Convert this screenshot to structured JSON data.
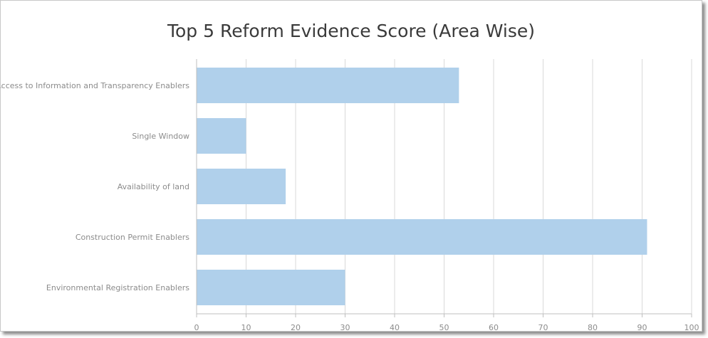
{
  "chart_data": {
    "type": "bar",
    "orientation": "horizontal",
    "title": "Top 5 Reform Evidence Score (Area Wise)",
    "categories": [
      "Access to Information and Transparency Enablers",
      "Single Window",
      "Availability of land",
      "Construction Permit Enablers",
      "Environmental Registration Enablers"
    ],
    "values": [
      53,
      10,
      18,
      91,
      30
    ],
    "xlim": [
      0,
      100
    ],
    "xticks": [
      "0",
      "10",
      "20",
      "30",
      "40",
      "50",
      "60",
      "70",
      "80",
      "90",
      "100"
    ],
    "grid": true,
    "legend": "none",
    "bar_color": "#b0d0eb",
    "grid_color": "#d9d9d9",
    "axis_color": "#bfbfbf"
  }
}
